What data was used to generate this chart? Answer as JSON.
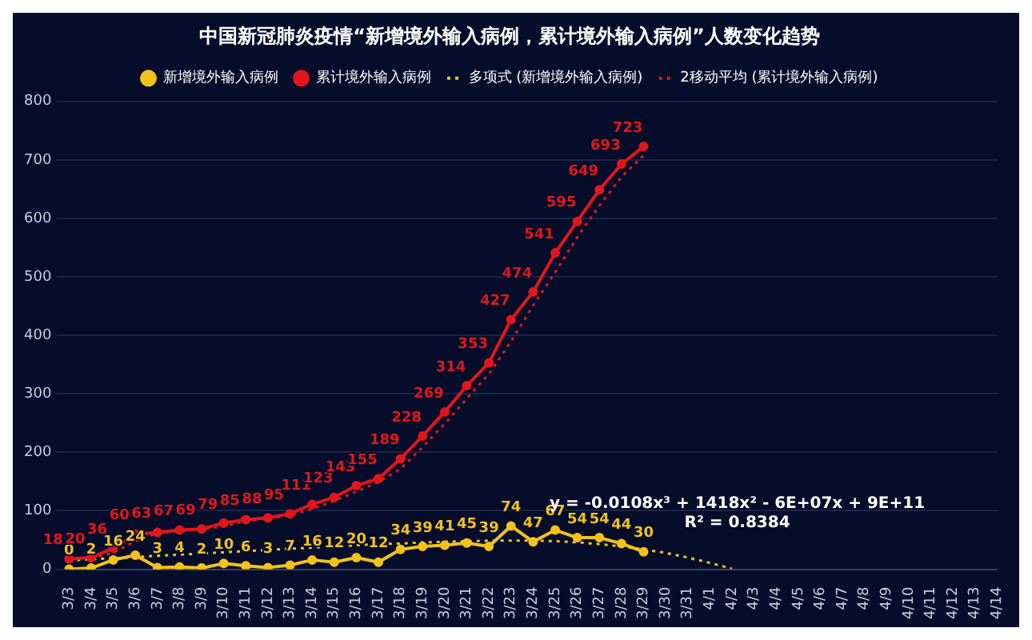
{
  "chart_data": {
    "type": "line",
    "title": "中国新冠肺炎疫情“新增境外输入病例，累计境外输入病例”人数变化趋势",
    "categories": [
      "3/3",
      "3/4",
      "3/5",
      "3/6",
      "3/7",
      "3/8",
      "3/9",
      "3/10",
      "3/11",
      "3/12",
      "3/13",
      "3/14",
      "3/15",
      "3/16",
      "3/17",
      "3/18",
      "3/19",
      "3/20",
      "3/21",
      "3/22",
      "3/23",
      "3/24",
      "3/25",
      "3/26",
      "3/27",
      "3/28",
      "3/29",
      "3/30",
      "3/31",
      "4/1",
      "4/2",
      "4/3",
      "4/4",
      "4/5",
      "4/6",
      "4/7",
      "4/8",
      "4/9",
      "4/10",
      "4/11",
      "4/12",
      "4/13",
      "4/14"
    ],
    "series": [
      {
        "name": "新增境外输入病例",
        "color": "#f2c21b",
        "marker": "circle",
        "line_style": "solid",
        "values": [
          0,
          2,
          16,
          24,
          3,
          4,
          2,
          10,
          6,
          3,
          7,
          16,
          12,
          20,
          12,
          34,
          39,
          41,
          45,
          39,
          74,
          47,
          67,
          54,
          54,
          44,
          30,
          null,
          null,
          null,
          null,
          null,
          null,
          null,
          null,
          null,
          null,
          null,
          null,
          null,
          null,
          null,
          null
        ],
        "value_labels": [
          "0",
          "2",
          "16",
          "24",
          "3",
          "4",
          "2",
          "10",
          "6",
          "3",
          "7",
          "16",
          "12",
          "20",
          "12",
          "34",
          "39",
          "41",
          "45",
          "39",
          "74",
          "47",
          "67",
          "54",
          "54",
          "44",
          "30",
          null,
          null,
          null,
          null,
          null,
          null,
          null,
          null,
          null,
          null,
          null,
          null,
          null,
          null,
          null,
          null
        ]
      },
      {
        "name": "累计境外输入病例",
        "color": "#e3161b",
        "marker": "circle",
        "line_style": "solid",
        "values": [
          18,
          20,
          36,
          60,
          63,
          67,
          69,
          79,
          85,
          88,
          95,
          111,
          123,
          143,
          155,
          189,
          228,
          269,
          314,
          353,
          427,
          474,
          541,
          595,
          649,
          693,
          723,
          null,
          null,
          null,
          null,
          null,
          null,
          null,
          null,
          null,
          null,
          null,
          null,
          null,
          null,
          null,
          null
        ],
        "value_labels": [
          "18",
          "20",
          "36",
          "60",
          "63",
          "67",
          "69",
          "79",
          "85",
          "88",
          "95",
          "111",
          "123",
          "143",
          "155",
          "189",
          "228",
          "269",
          "314",
          "353",
          "427",
          "474",
          "541",
          "595",
          "649",
          "693",
          "723",
          null,
          null,
          null,
          null,
          null,
          null,
          null,
          null,
          null,
          null,
          null,
          null,
          null,
          null,
          null,
          null
        ]
      },
      {
        "name": "多项式 (新增境外输入病例)",
        "color": "#f2c21b",
        "marker": "none",
        "line_style": "dotted",
        "values": [
          15,
          17,
          19,
          21,
          23,
          25,
          27,
          29,
          31,
          33,
          35,
          37,
          39,
          41,
          43,
          44,
          46,
          47,
          48,
          49,
          49,
          49,
          48,
          46,
          43,
          39,
          34,
          28,
          20,
          11,
          1,
          null,
          null,
          null,
          null,
          null,
          null,
          null,
          null,
          null,
          null,
          null,
          null
        ]
      },
      {
        "name": "2移动平均 (累计境外输入病例)",
        "color": "#e3161b",
        "marker": "none",
        "line_style": "dotted",
        "values": [
          null,
          19,
          28,
          48,
          62,
          65,
          68,
          74,
          82,
          87,
          92,
          103,
          117,
          133,
          149,
          172,
          209,
          249,
          292,
          334,
          390,
          451,
          508,
          568,
          622,
          671,
          708,
          null,
          null,
          null,
          null,
          null,
          null,
          null,
          null,
          null,
          null,
          null,
          null,
          null,
          null,
          null,
          null
        ]
      }
    ],
    "ylim": [
      0,
      800
    ],
    "yticks": [
      0,
      100,
      200,
      300,
      400,
      500,
      600,
      700,
      800
    ],
    "grid": "y",
    "legend": "top",
    "annotations": [
      "y = -0.0108x³ + 1418x² - 6E+07x + 9E+11",
      "R² = 0.8384"
    ]
  }
}
